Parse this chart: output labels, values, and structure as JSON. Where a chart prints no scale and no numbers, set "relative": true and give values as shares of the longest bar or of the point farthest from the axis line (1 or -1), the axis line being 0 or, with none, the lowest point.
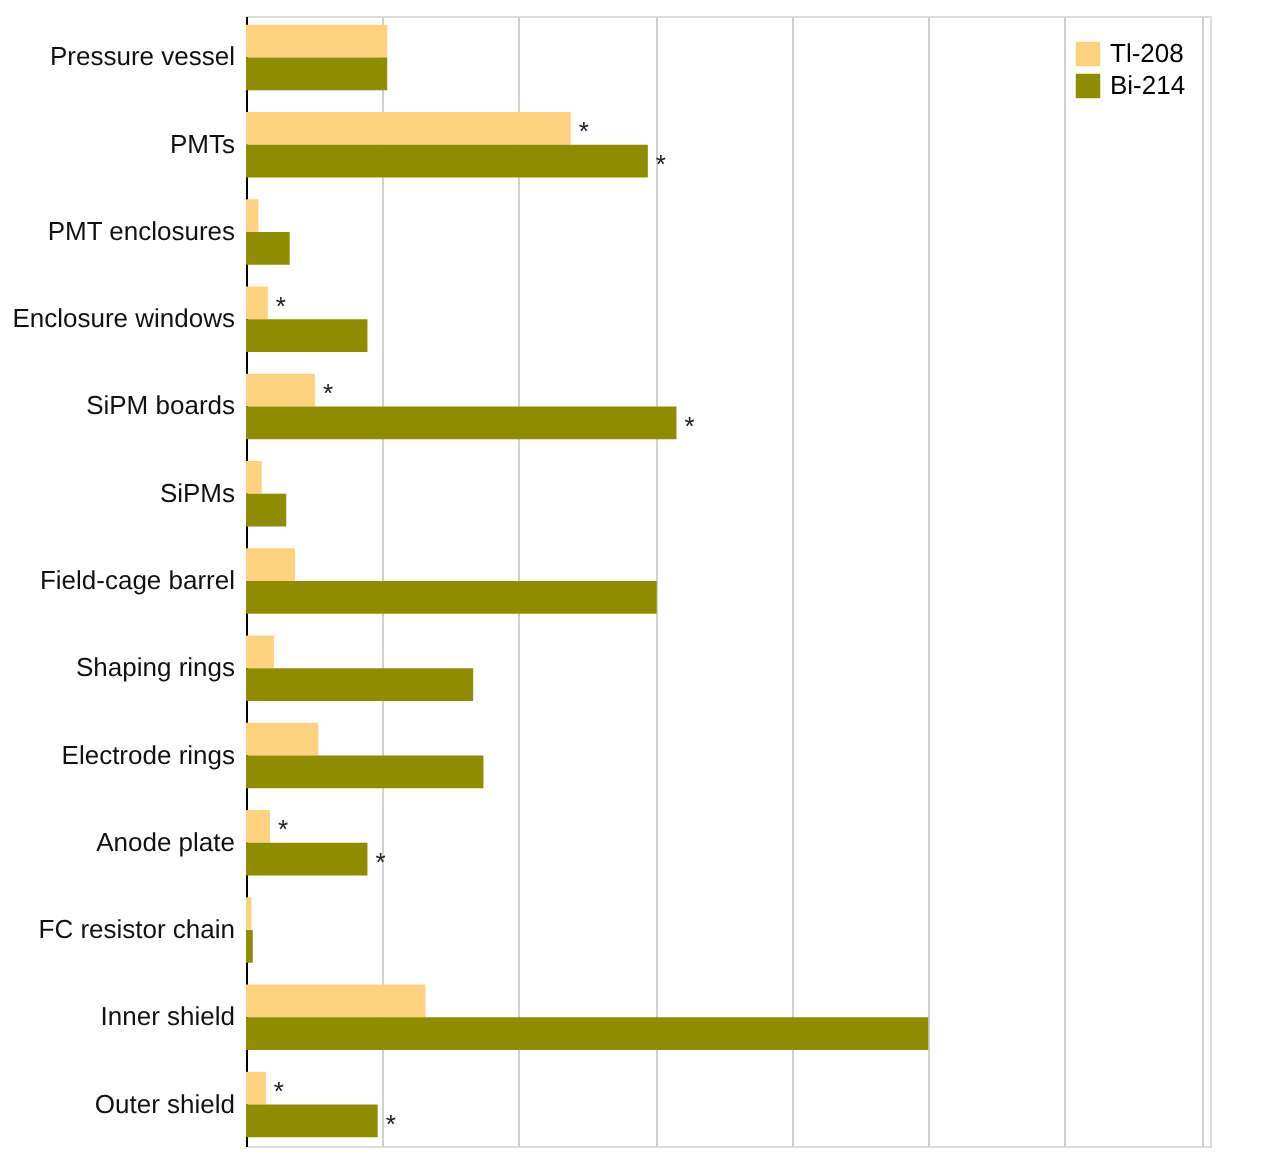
{
  "chart_data": {
    "type": "bar",
    "orientation": "horizontal",
    "relative": true,
    "grid": "x",
    "legend": "top right",
    "categories": [
      "Pressure vessel",
      "PMTs",
      "PMT enclosures",
      "Enclosure windows",
      "SiPM boards",
      "SiPMs",
      "Field-cage barrel",
      "Shaping rings",
      "Electrode rings",
      "Anode plate",
      "FC resistor chain",
      "Inner shield",
      "Outer shield"
    ],
    "series": [
      {
        "name": "Tl-208",
        "color": "#fdd27f",
        "values": [
          0.207,
          0.476,
          0.018,
          0.032,
          0.101,
          0.023,
          0.072,
          0.041,
          0.106,
          0.035,
          0.008,
          0.263,
          0.029
        ]
      },
      {
        "name": "Bi-214",
        "color": "#8f8c00",
        "values": [
          0.207,
          0.589,
          0.064,
          0.178,
          0.631,
          0.059,
          0.602,
          0.333,
          0.348,
          0.178,
          0.01,
          1,
          0.193
        ]
      }
    ],
    "annotations": [
      {
        "text": "*",
        "x": 0.476,
        "y": "PMTs"
      },
      {
        "text": "*",
        "x": 0.589,
        "y": "PMTs"
      },
      {
        "text": "*",
        "x": 0.032,
        "y": "Enclosure windows"
      },
      {
        "text": "*",
        "x": 0.101,
        "y": "SiPM boards"
      },
      {
        "text": "*",
        "x": 0.631,
        "y": "SiPM boards"
      },
      {
        "text": "*",
        "x": 0.035,
        "y": "Anode plate"
      },
      {
        "text": "*",
        "x": 0.178,
        "y": "Anode plate"
      },
      {
        "text": "*",
        "x": 0.029,
        "y": "Outer shield"
      },
      {
        "text": "*",
        "x": 0.193,
        "y": "Outer shield"
      }
    ]
  }
}
